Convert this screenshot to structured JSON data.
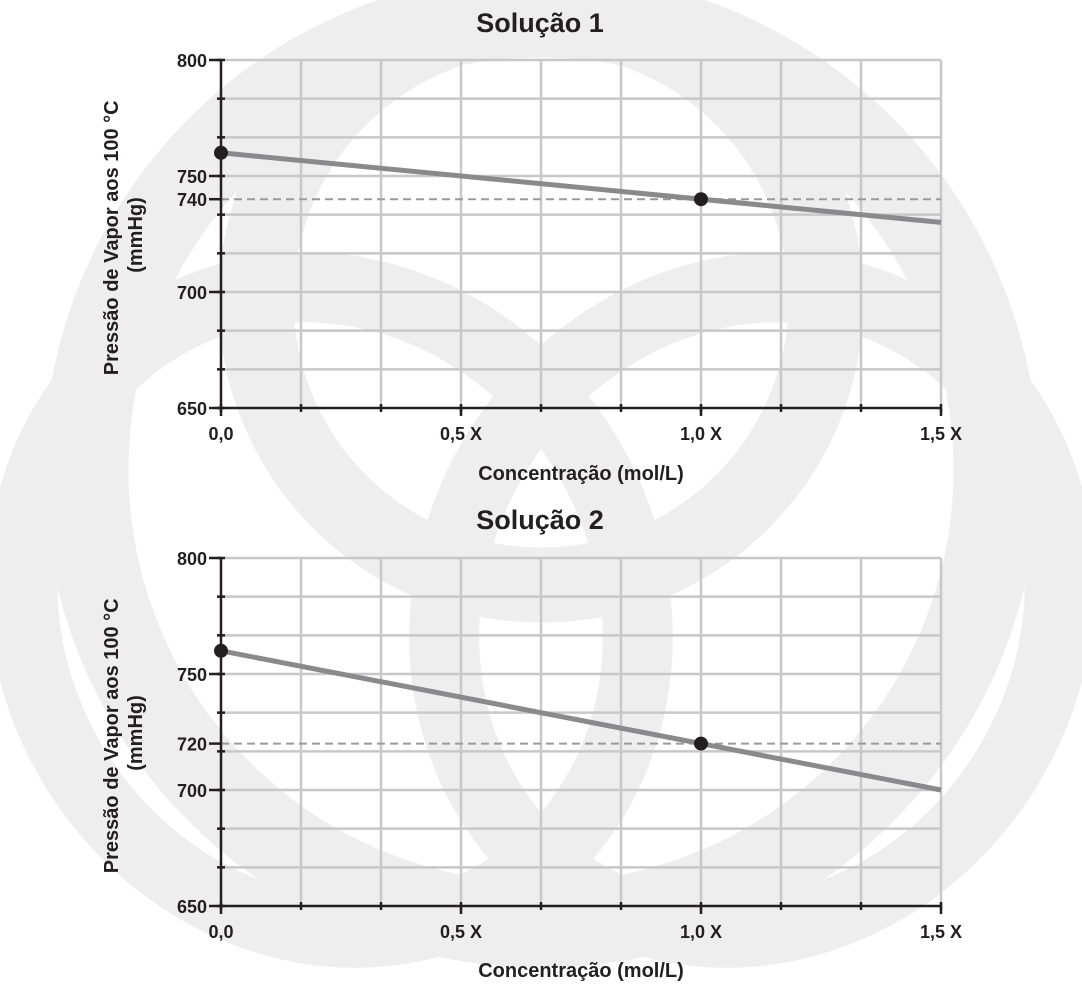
{
  "chart_data": [
    {
      "type": "line",
      "title": "Solução 1",
      "xlabel": "Concentração (mol/L)",
      "ylabel": [
        "Pressão de Vapor aos 100 °C",
        "(mmHg)"
      ],
      "x_ticks": [
        {
          "value": 0,
          "label": "0,0"
        },
        {
          "value": 0.5,
          "label": "0,5 X"
        },
        {
          "value": 1.0,
          "label": "1,0 X"
        },
        {
          "value": 1.5,
          "label": "1,5 X"
        }
      ],
      "y_ticks": [
        {
          "value": 650,
          "label": "650"
        },
        {
          "value": 700,
          "label": "700"
        },
        {
          "value": 740,
          "label": "740"
        },
        {
          "value": 750,
          "label": "750"
        },
        {
          "value": 800,
          "label": "800"
        }
      ],
      "xlim": [
        0,
        1.5
      ],
      "ylim": [
        650,
        800
      ],
      "x_grid_step": 0.166667,
      "y_grid_step": 16.667,
      "grid": true,
      "series": [
        {
          "x": [
            0,
            1.5
          ],
          "y": [
            760,
            730
          ]
        }
      ],
      "points": [
        {
          "x": 0,
          "y": 760
        },
        {
          "x": 1.0,
          "y": 740
        }
      ],
      "reference_lines": [
        {
          "y": 740,
          "style": "dashed"
        }
      ]
    },
    {
      "type": "line",
      "title": "Solução 2",
      "xlabel": "Concentração (mol/L)",
      "ylabel": [
        "Pressão de Vapor aos 100 °C",
        "(mmHg)"
      ],
      "x_ticks": [
        {
          "value": 0,
          "label": "0,0"
        },
        {
          "value": 0.5,
          "label": "0,5 X"
        },
        {
          "value": 1.0,
          "label": "1,0 X"
        },
        {
          "value": 1.5,
          "label": "1,5 X"
        }
      ],
      "y_ticks": [
        {
          "value": 650,
          "label": "650"
        },
        {
          "value": 700,
          "label": "700"
        },
        {
          "value": 720,
          "label": "720"
        },
        {
          "value": 750,
          "label": "750"
        },
        {
          "value": 800,
          "label": "800"
        }
      ],
      "xlim": [
        0,
        1.5
      ],
      "ylim": [
        650,
        800
      ],
      "x_grid_step": 0.166667,
      "y_grid_step": 16.667,
      "grid": true,
      "series": [
        {
          "x": [
            0,
            1.5
          ],
          "y": [
            760,
            700
          ]
        }
      ],
      "points": [
        {
          "x": 0,
          "y": 760
        },
        {
          "x": 1.0,
          "y": 720
        }
      ],
      "reference_lines": [
        {
          "y": 720,
          "style": "dashed"
        }
      ]
    }
  ]
}
